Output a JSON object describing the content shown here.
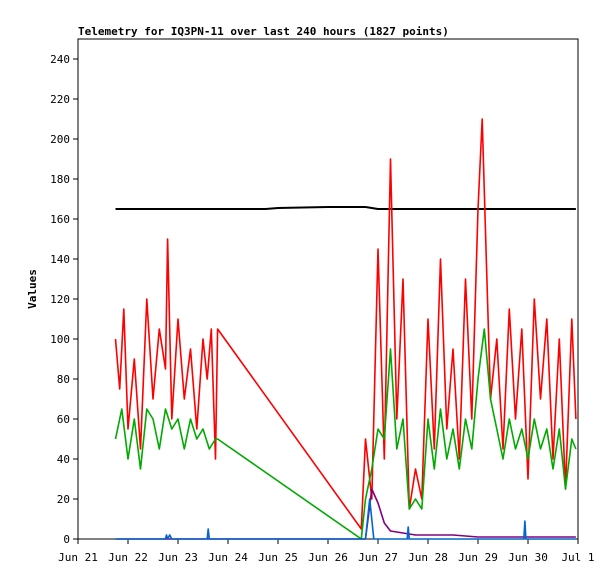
{
  "chart_data": {
    "type": "line",
    "title": "Telemetry for IQ3PN-11 over last 240 hours (1827 points)",
    "xlabel": "",
    "ylabel": "Values",
    "x_axis_type": "date",
    "x_ticks": [
      "Jun 21",
      "Jun 22",
      "Jun 23",
      "Jun 24",
      "Jun 25",
      "Jun 26",
      "Jun 27",
      "Jun 28",
      "Jun 29",
      "Jun 30",
      "Jul 1"
    ],
    "xlim": [
      "2024-06-21T00:00",
      "2024-07-01T00:00"
    ],
    "ylim": [
      0,
      250
    ],
    "y_ticks": [
      0,
      20,
      40,
      60,
      80,
      100,
      120,
      140,
      160,
      180,
      200,
      220,
      240
    ],
    "grid": false,
    "legend": "none",
    "series": [
      {
        "color": "#000000",
        "x": [
          "2024-06-21T18:00",
          "2024-06-23T00:00",
          "2024-06-24T18:00",
          "2024-06-25T00:00",
          "2024-06-26T00:00",
          "2024-06-26T18:00",
          "2024-06-27T00:00",
          "2024-06-30T23:00"
        ],
        "y": [
          165,
          165,
          165,
          165.5,
          166,
          166,
          165,
          165
        ]
      },
      {
        "color": "#ff0000",
        "x": [
          "2024-06-21T18:00",
          "2024-06-21T20:00",
          "2024-06-21T22:00",
          "2024-06-22T00:00",
          "2024-06-22T03:00",
          "2024-06-22T06:00",
          "2024-06-22T09:00",
          "2024-06-22T12:00",
          "2024-06-22T15:00",
          "2024-06-22T18:00",
          "2024-06-22T19:00",
          "2024-06-22T21:00",
          "2024-06-23T00:00",
          "2024-06-23T03:00",
          "2024-06-23T06:00",
          "2024-06-23T09:00",
          "2024-06-23T12:00",
          "2024-06-23T14:00",
          "2024-06-23T16:00",
          "2024-06-23T18:00",
          "2024-06-23T19:00",
          "2024-06-26T16:00",
          "2024-06-26T18:00",
          "2024-06-26T21:00",
          "2024-06-27T00:00",
          "2024-06-27T03:00",
          "2024-06-27T06:00",
          "2024-06-27T09:00",
          "2024-06-27T12:00",
          "2024-06-27T15:00",
          "2024-06-27T18:00",
          "2024-06-27T21:00",
          "2024-06-28T00:00",
          "2024-06-28T03:00",
          "2024-06-28T06:00",
          "2024-06-28T09:00",
          "2024-06-28T12:00",
          "2024-06-28T15:00",
          "2024-06-28T18:00",
          "2024-06-28T21:00",
          "2024-06-29T00:00",
          "2024-06-29T02:00",
          "2024-06-29T04:00",
          "2024-06-29T06:00",
          "2024-06-29T09:00",
          "2024-06-29T12:00",
          "2024-06-29T15:00",
          "2024-06-29T18:00",
          "2024-06-29T21:00",
          "2024-06-30T00:00",
          "2024-06-30T03:00",
          "2024-06-30T06:00",
          "2024-06-30T09:00",
          "2024-06-30T12:00",
          "2024-06-30T15:00",
          "2024-06-30T18:00",
          "2024-06-30T21:00",
          "2024-06-30T23:00"
        ],
        "y": [
          100,
          75,
          115,
          55,
          90,
          45,
          120,
          70,
          105,
          85,
          150,
          60,
          110,
          70,
          95,
          55,
          100,
          80,
          105,
          40,
          105,
          5,
          50,
          20,
          145,
          40,
          190,
          60,
          130,
          15,
          35,
          20,
          110,
          45,
          140,
          55,
          95,
          40,
          130,
          60,
          165,
          210,
          140,
          70,
          100,
          45,
          115,
          60,
          105,
          30,
          120,
          70,
          110,
          40,
          100,
          25,
          110,
          60
        ]
      },
      {
        "color": "#00aa00",
        "x": [
          "2024-06-21T18:00",
          "2024-06-21T21:00",
          "2024-06-22T00:00",
          "2024-06-22T03:00",
          "2024-06-22T06:00",
          "2024-06-22T09:00",
          "2024-06-22T12:00",
          "2024-06-22T15:00",
          "2024-06-22T18:00",
          "2024-06-22T21:00",
          "2024-06-23T00:00",
          "2024-06-23T03:00",
          "2024-06-23T06:00",
          "2024-06-23T09:00",
          "2024-06-23T12:00",
          "2024-06-23T15:00",
          "2024-06-23T18:00",
          "2024-06-23T19:00",
          "2024-06-26T16:00",
          "2024-06-26T18:00",
          "2024-06-26T21:00",
          "2024-06-27T00:00",
          "2024-06-27T03:00",
          "2024-06-27T06:00",
          "2024-06-27T09:00",
          "2024-06-27T12:00",
          "2024-06-27T15:00",
          "2024-06-27T18:00",
          "2024-06-27T21:00",
          "2024-06-28T00:00",
          "2024-06-28T03:00",
          "2024-06-28T06:00",
          "2024-06-28T09:00",
          "2024-06-28T12:00",
          "2024-06-28T15:00",
          "2024-06-28T18:00",
          "2024-06-28T21:00",
          "2024-06-29T00:00",
          "2024-06-29T03:00",
          "2024-06-29T06:00",
          "2024-06-29T09:00",
          "2024-06-29T12:00",
          "2024-06-29T15:00",
          "2024-06-29T18:00",
          "2024-06-29T21:00",
          "2024-06-30T00:00",
          "2024-06-30T03:00",
          "2024-06-30T06:00",
          "2024-06-30T09:00",
          "2024-06-30T12:00",
          "2024-06-30T15:00",
          "2024-06-30T18:00",
          "2024-06-30T21:00",
          "2024-06-30T23:00"
        ],
        "y": [
          50,
          65,
          40,
          60,
          35,
          65,
          60,
          45,
          65,
          55,
          60,
          45,
          60,
          50,
          55,
          45,
          50,
          50,
          0,
          20,
          35,
          55,
          50,
          95,
          45,
          60,
          15,
          20,
          15,
          60,
          35,
          65,
          40,
          55,
          35,
          60,
          45,
          80,
          105,
          70,
          55,
          40,
          60,
          45,
          55,
          40,
          60,
          45,
          55,
          35,
          55,
          25,
          50,
          45
        ]
      },
      {
        "color": "#800080",
        "x": [
          "2024-06-21T18:00",
          "2024-06-26T18:00",
          "2024-06-26T21:00",
          "2024-06-27T00:00",
          "2024-06-27T03:00",
          "2024-06-27T06:00",
          "2024-06-27T12:00",
          "2024-06-27T18:00",
          "2024-06-28T00:00",
          "2024-06-28T12:00",
          "2024-06-29T00:00",
          "2024-06-30T23:00"
        ],
        "y": [
          0,
          0,
          25,
          18,
          8,
          4,
          3,
          2,
          2,
          2,
          1,
          1
        ]
      },
      {
        "color": "#0066cc",
        "x": [
          "2024-06-21T18:00",
          "2024-06-22T18:00",
          "2024-06-22T18:30",
          "2024-06-22T19:00",
          "2024-06-22T20:00",
          "2024-06-22T21:00",
          "2024-06-23T14:00",
          "2024-06-23T14:30",
          "2024-06-23T15:00",
          "2024-06-26T18:00",
          "2024-06-26T20:00",
          "2024-06-26T22:00",
          "2024-06-27T14:00",
          "2024-06-27T14:30",
          "2024-06-27T15:00",
          "2024-06-29T22:00",
          "2024-06-29T22:30",
          "2024-06-29T23:00",
          "2024-06-30T23:00"
        ],
        "y": [
          0,
          0,
          2,
          0,
          2,
          0,
          0,
          5,
          0,
          0,
          20,
          0,
          0,
          6,
          0,
          0,
          9,
          0,
          0
        ]
      }
    ]
  }
}
